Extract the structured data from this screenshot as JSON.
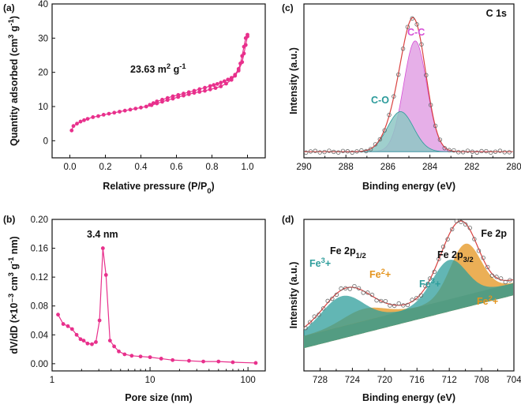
{
  "chart_data": [
    {
      "panel": "(a)",
      "type": "scatter",
      "annotation": "23.63 m² g⁻¹",
      "xlabel": "Relative pressure (P/P0)",
      "ylabel": "Quantity adsorbed (cm³ g⁻¹)",
      "xlim": [
        -0.1,
        1.1
      ],
      "ylim": [
        -5,
        40
      ],
      "xticks": [
        "0.0",
        "0.2",
        "0.4",
        "0.6",
        "0.8",
        "1.0"
      ],
      "yticks": [
        "0",
        "10",
        "20",
        "30",
        "40"
      ],
      "color": "#e8308c",
      "series": [
        {
          "x": [
            0.01,
            0.02,
            0.04,
            0.06,
            0.08,
            0.1,
            0.13,
            0.16,
            0.19,
            0.22,
            0.25,
            0.28,
            0.31,
            0.34,
            0.37,
            0.4,
            0.43,
            0.46,
            0.49,
            0.52,
            0.55,
            0.58,
            0.61,
            0.64,
            0.67,
            0.7,
            0.73,
            0.76,
            0.79,
            0.82,
            0.85,
            0.88,
            0.91,
            0.93,
            0.95,
            0.97,
            0.98,
            0.99,
            1.0
          ],
          "y": [
            3.0,
            4.3,
            5.0,
            5.6,
            6.0,
            6.4,
            6.9,
            7.2,
            7.6,
            7.9,
            8.2,
            8.5,
            8.8,
            9.1,
            9.4,
            9.7,
            10.0,
            10.4,
            10.9,
            11.4,
            11.9,
            12.3,
            12.8,
            13.2,
            13.6,
            14.0,
            14.3,
            14.6,
            15.0,
            15.4,
            15.9,
            16.7,
            17.8,
            19.0,
            20.5,
            23.0,
            25.5,
            28.0,
            30.5
          ]
        },
        {
          "x": [
            1.0,
            0.99,
            0.98,
            0.97,
            0.96,
            0.95,
            0.93,
            0.91,
            0.89,
            0.87,
            0.85,
            0.83,
            0.81,
            0.79,
            0.76,
            0.73,
            0.7,
            0.67,
            0.64,
            0.61,
            0.58,
            0.55,
            0.52,
            0.49,
            0.47,
            0.45
          ],
          "y": [
            31.0,
            30.0,
            27.5,
            24.8,
            22.6,
            21.0,
            19.3,
            18.4,
            17.9,
            17.4,
            17.0,
            16.6,
            16.3,
            16.0,
            15.5,
            15.1,
            14.6,
            14.2,
            13.8,
            13.4,
            13.0,
            12.5,
            12.0,
            11.5,
            11.0,
            10.5
          ]
        }
      ]
    },
    {
      "panel": "(b)",
      "type": "line",
      "annotation": "3.4 nm",
      "xlabel": "Pore size (nm)",
      "ylabel": "dV/dD (×10⁻³ cm³ g⁻¹ nm)",
      "xscale": "log",
      "xlim": [
        1,
        150
      ],
      "ylim": [
        -0.01,
        0.2
      ],
      "xticks": [
        "1",
        "10",
        "100"
      ],
      "yticks": [
        "0.00",
        "0.04",
        "0.08",
        "0.12",
        "0.16",
        "0.20"
      ],
      "color": "#e8308c",
      "x": [
        1.15,
        1.3,
        1.45,
        1.6,
        1.78,
        1.95,
        2.1,
        2.3,
        2.55,
        2.8,
        3.05,
        3.3,
        3.55,
        3.9,
        4.3,
        4.8,
        5.5,
        6.5,
        8.0,
        10,
        13,
        17,
        25,
        35,
        50,
        70,
        120
      ],
      "y": [
        0.068,
        0.055,
        0.052,
        0.048,
        0.04,
        0.034,
        0.032,
        0.028,
        0.027,
        0.03,
        0.06,
        0.16,
        0.123,
        0.032,
        0.024,
        0.017,
        0.013,
        0.011,
        0.01,
        0.009,
        0.007,
        0.005,
        0.004,
        0.003,
        0.003,
        0.002,
        0.001
      ]
    },
    {
      "panel": "(c)",
      "type": "line",
      "corner_label": "C 1s",
      "xlabel": "Binding energy (eV)",
      "ylabel": "Intensity (a.u.)",
      "xlim": [
        290,
        280
      ],
      "xticks": [
        "290",
        "288",
        "286",
        "284",
        "282",
        "280"
      ],
      "baseline": 0.04,
      "series": [
        {
          "name": "C-C",
          "center": 284.7,
          "sigma": 0.55,
          "amplitude": 0.72,
          "color": "#d64fd6",
          "fill": "#e3a6e6"
        },
        {
          "name": "C-O",
          "center": 285.4,
          "sigma": 0.62,
          "amplitude": 0.26,
          "color": "#2a9a9a",
          "fill": "#8ec7c4"
        }
      ]
    },
    {
      "panel": "(d)",
      "type": "line",
      "corner_label": "Fe 2p",
      "xlabel": "Binding energy (eV)",
      "ylabel": "Intensity (a.u.)",
      "xlim": [
        730,
        704
      ],
      "xticks": [
        "728",
        "724",
        "720",
        "716",
        "712",
        "708",
        "704"
      ],
      "peak_labels": [
        "Fe 2p1/2",
        "Fe 2p3/2"
      ],
      "series": [
        {
          "name": "Fe³⁺",
          "color": "#2e9d9b"
        },
        {
          "name": "Fe²⁺",
          "color": "#e4941e"
        },
        {
          "name": "Fe³⁺",
          "color": "#2e9d9b"
        },
        {
          "name": "Fe²⁺",
          "color": "#e4941e"
        }
      ]
    }
  ]
}
